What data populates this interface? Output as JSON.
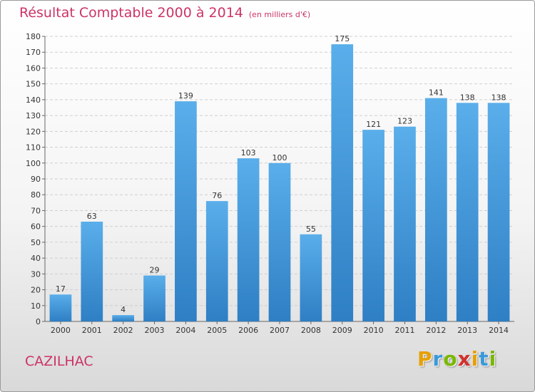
{
  "title": "Résultat Comptable 2000 à 2014",
  "subtitle": "(en milliers d'€)",
  "commune": "CAZILHAC",
  "logo": {
    "letters": [
      "P",
      "r",
      "o",
      "x",
      "i",
      "t",
      "i"
    ],
    "colors": [
      "#e8a000",
      "#3a9ad9",
      "#7ab800",
      "#d0312d",
      "#e8a000",
      "#3a9ad9",
      "#7ab800"
    ]
  },
  "colors": {
    "title": "#cc3366",
    "bar_top": "#5aaeea",
    "bar_bottom": "#2e7fc4",
    "grid": "#cfcfcf"
  },
  "chart_data": {
    "type": "bar",
    "categories": [
      "2000",
      "2001",
      "2002",
      "2003",
      "2004",
      "2005",
      "2006",
      "2007",
      "2008",
      "2009",
      "2010",
      "2011",
      "2012",
      "2013",
      "2014"
    ],
    "values": [
      17,
      63,
      4,
      29,
      139,
      76,
      103,
      100,
      55,
      175,
      121,
      123,
      141,
      138,
      138
    ],
    "ylim": [
      0,
      180
    ],
    "yticks": [
      0,
      10,
      20,
      30,
      40,
      50,
      60,
      70,
      80,
      90,
      100,
      110,
      120,
      130,
      140,
      150,
      160,
      170,
      180
    ],
    "grid": true,
    "title": "Résultat Comptable 2000 à 2014",
    "subtitle": "(en milliers d'€)"
  }
}
